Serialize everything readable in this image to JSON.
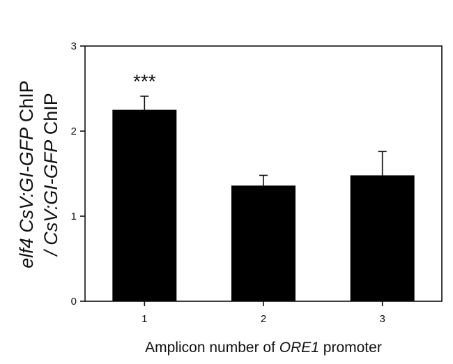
{
  "chart_data": {
    "type": "bar",
    "categories": [
      "1",
      "2",
      "3"
    ],
    "values": [
      2.25,
      1.36,
      1.48
    ],
    "errors": [
      0.16,
      0.12,
      0.28
    ],
    "ylim": [
      0,
      3
    ],
    "yticks": [
      "0",
      "1",
      "2",
      "3"
    ],
    "xlabel": {
      "prefix": "Amplicon number of ",
      "italic": "ORE1",
      "suffix": " promoter"
    },
    "ylabel": {
      "line1": {
        "part1": "elf4 CsV:GI-GFP",
        "part2": " ChIP"
      },
      "line2": {
        "part1": "/ CsV:GI-GFP",
        "part2": " ChIP"
      }
    },
    "annotations": [
      {
        "category": "1",
        "text": "***"
      }
    ],
    "bar_color": "#000000",
    "grid": false
  }
}
